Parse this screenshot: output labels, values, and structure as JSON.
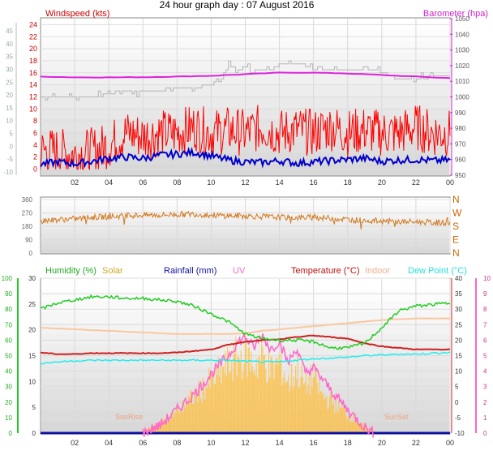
{
  "title": "24 hour graph day : 07 August 2016",
  "x_tick_labels": [
    "02",
    "04",
    "06",
    "08",
    "10",
    "12",
    "14",
    "16",
    "18",
    "20",
    "22",
    "00"
  ],
  "wind_panel": {
    "label_windspeed": "Windspeed (kts)",
    "label_barometer": "Barometer (hpa)",
    "far_left_ticks": [
      "45",
      "40",
      "35",
      "30",
      "25",
      "20",
      "15",
      "10",
      "5",
      "0",
      "-5",
      "-10"
    ],
    "windspeed_ticks": [
      "24",
      "22",
      "20",
      "18",
      "16",
      "14",
      "12",
      "10",
      "8",
      "6",
      "4",
      "2",
      "0"
    ],
    "barometer_ticks": [
      "1050",
      "1040",
      "1030",
      "1020",
      "1010",
      "1000",
      "990",
      "980",
      "970",
      "960",
      "950"
    ],
    "colors": {
      "windspeed": "#ff0000",
      "average": "#0000cc",
      "barometer": "#dd22dd",
      "grey_trace": "#b4b4b4"
    }
  },
  "direction_panel": {
    "degree_ticks": [
      "360",
      "270",
      "180",
      "90",
      "0"
    ],
    "compass_labels": [
      "N",
      "W",
      "S",
      "E",
      "N"
    ],
    "color": "#d2781e"
  },
  "climate_panel": {
    "legend": {
      "humidity": "Humidity (%)",
      "solar": "Solar",
      "rainfall": "Rainfall (mm)",
      "uv": "UV",
      "temperature": "Temperature (°C)",
      "indoor": "Indoor",
      "dewpoint": "Dew Point (°C)"
    },
    "humidity_ticks": [
      "100",
      "90",
      "80",
      "70",
      "60",
      "50",
      "40",
      "30",
      "20",
      "10",
      "0"
    ],
    "rain_ticks": [
      "30",
      "25",
      "20",
      "15",
      "10",
      "5",
      "0"
    ],
    "temp_ticks": [
      "40",
      "35",
      "30",
      "25",
      "20",
      "15",
      "10",
      "5",
      "0",
      "-5",
      "-10"
    ],
    "uv_ticks": [
      "10",
      "9",
      "8",
      "7",
      "6",
      "5",
      "4",
      "3",
      "2",
      "1",
      "0"
    ],
    "sunrise_label": "SunRise",
    "sunset_label": "SunSet",
    "colors": {
      "humidity": "#22cc22",
      "solar": "#ffc040",
      "rainfall": "#1010a0",
      "uv": "#ff66cc",
      "temperature": "#cc2222",
      "indoor": "#f8c8a0",
      "dewpoint": "#22eeee"
    }
  },
  "chart_data": [
    {
      "type": "line",
      "title": "24 hour graph day : 07 August 2016",
      "series": [
        {
          "name": "Windspeed (kts)",
          "axis": "windspeed",
          "x": [
            0,
            1,
            2,
            3,
            4,
            5,
            6,
            7,
            8,
            9,
            10,
            11,
            12,
            13,
            14,
            15,
            16,
            17,
            18,
            19,
            20,
            21,
            22,
            23,
            24
          ],
          "values": [
            3,
            3,
            2.5,
            3,
            4,
            6,
            5.5,
            6,
            6,
            7,
            6,
            6.5,
            6,
            7,
            6,
            6.5,
            6,
            7,
            6,
            6.5,
            6,
            6,
            7,
            6,
            6
          ]
        },
        {
          "axis": "windspeed",
          "x": [
            0,
            1,
            2,
            3,
            4,
            5,
            6,
            7,
            8,
            9,
            10,
            11,
            12,
            13,
            14,
            15,
            16,
            17,
            18,
            19,
            20,
            21,
            22,
            23,
            24
          ],
          "values": [
            0.8,
            1.2,
            0.9,
            1.3,
            1.8,
            2,
            1.8,
            2.3,
            2.5,
            2.8,
            2.2,
            1.5,
            1.2,
            1.1,
            1.4,
            1,
            1.2,
            1.4,
            1.6,
            1.8,
            1.3,
            1.5,
            1.6,
            1.4,
            1.5
          ]
        },
        {
          "name": "Barometer (hpa)",
          "axis": "barometer",
          "x": [
            0,
            2,
            4,
            6,
            8,
            10,
            12,
            14,
            16,
            18,
            20,
            22,
            24
          ],
          "values": [
            1013,
            1012.5,
            1012.5,
            1012.6,
            1013,
            1013.5,
            1014.5,
            1015.5,
            1015.5,
            1015,
            1014,
            1013,
            1012
          ]
        },
        {
          "axis": "windspeed",
          "x": [
            0,
            1,
            3,
            5,
            7,
            9,
            10.5,
            11,
            11.5,
            12,
            13,
            14,
            15,
            16,
            17,
            18,
            19,
            20,
            21,
            22,
            23,
            24
          ],
          "values": [
            12.2,
            12,
            12,
            12.8,
            13.2,
            13.5,
            14.5,
            17.5,
            16.5,
            17,
            16.5,
            17.5,
            17.5,
            17,
            16.5,
            16.5,
            16.8,
            16,
            15,
            15,
            15.5,
            15.5
          ]
        }
      ],
      "ylim_windspeed": [
        -1,
        25
      ],
      "ylim_barometer": [
        950,
        1050
      ]
    },
    {
      "type": "scatter",
      "series": [
        {
          "x": [
            0,
            1,
            2,
            3,
            4,
            5,
            6,
            7,
            8,
            9,
            10,
            11,
            12,
            13,
            14,
            15,
            16,
            17,
            18,
            19,
            20,
            21,
            22,
            23,
            24
          ],
          "values": [
            215,
            225,
            230,
            240,
            245,
            250,
            255,
            255,
            260,
            262,
            255,
            250,
            250,
            245,
            240,
            238,
            240,
            235,
            225,
            220,
            215,
            210,
            210,
            205,
            205
          ]
        }
      ],
      "ylim": [
        0,
        360
      ]
    },
    {
      "type": "line",
      "series": [
        {
          "name": "Humidity (%)",
          "axis": "humidity",
          "x": [
            0,
            1,
            2,
            3,
            4,
            5,
            6,
            7,
            8,
            9,
            10,
            11,
            12,
            13,
            14,
            15,
            16,
            17,
            18,
            19,
            20,
            21,
            22,
            23,
            24
          ],
          "values": [
            80,
            84,
            86,
            88,
            88,
            87,
            87,
            86,
            85,
            82,
            77,
            72,
            64,
            61,
            60,
            60,
            59,
            55,
            55,
            58,
            68,
            79,
            82,
            83,
            84
          ]
        },
        {
          "name": "Temperature (°C)",
          "axis": "temp",
          "x": [
            0,
            1,
            2,
            3,
            4,
            5,
            6,
            7,
            8,
            9,
            10,
            11,
            12,
            13,
            14,
            15,
            16,
            17,
            18,
            19,
            20,
            21,
            22,
            23,
            24
          ],
          "values": [
            16,
            15.5,
            15.5,
            15.8,
            15.8,
            15.8,
            15.8,
            15.8,
            16,
            16.5,
            17,
            18.5,
            19.5,
            20,
            20.2,
            21,
            21.5,
            21,
            20.5,
            19,
            18,
            17.5,
            17,
            17,
            17
          ]
        },
        {
          "name": "Dew Point (°C)",
          "axis": "temp",
          "x": [
            0,
            1,
            2,
            3,
            4,
            5,
            6,
            7,
            8,
            9,
            10,
            11,
            12,
            13,
            14,
            15,
            16,
            17,
            18,
            19,
            20,
            21,
            22,
            23,
            24
          ],
          "values": [
            12.5,
            13,
            13.3,
            13.5,
            13.5,
            13.5,
            13.5,
            13.5,
            13.5,
            13.5,
            13.5,
            13.5,
            13.2,
            13,
            13,
            13.5,
            14,
            14.2,
            14.5,
            15,
            15.2,
            15.5,
            15.5,
            15.8,
            16
          ]
        },
        {
          "name": "Indoor",
          "axis": "temp",
          "x": [
            0,
            2,
            4,
            6,
            8,
            10,
            11,
            12,
            13,
            14,
            16,
            18,
            20,
            22,
            24
          ],
          "values": [
            24,
            23.5,
            23,
            22.5,
            22,
            22,
            22,
            22.2,
            23,
            23.5,
            24.5,
            25.5,
            26.5,
            27,
            27
          ]
        },
        {
          "name": "Solar",
          "axis": "uv",
          "x": [
            5.5,
            6,
            7,
            8,
            9,
            10,
            11,
            11.5,
            12,
            12.5,
            13,
            13.5,
            14,
            14.5,
            15,
            15.5,
            16,
            16.5,
            17,
            18,
            19,
            19.5,
            20
          ],
          "values": [
            0,
            0.2,
            0.8,
            1.8,
            3,
            4.2,
            5.5,
            6,
            6.3,
            5.5,
            6.2,
            5,
            5.8,
            4,
            5.2,
            3.8,
            4.5,
            3,
            2.6,
            1.5,
            0.5,
            0.2,
            0
          ]
        },
        {
          "name": "UV",
          "axis": "uv",
          "x": [
            6,
            7,
            8,
            9,
            10,
            11,
            11.5,
            12,
            12.5,
            13,
            13.5,
            14,
            14.5,
            15,
            15.5,
            16,
            17,
            18,
            19,
            19.5
          ],
          "values": [
            0,
            0.5,
            1.5,
            2.5,
            3.8,
            5,
            5.8,
            6.2,
            5.5,
            6.3,
            5.4,
            6,
            4.5,
            5.5,
            3.9,
            4.2,
            2.8,
            1.5,
            0.4,
            0
          ]
        },
        {
          "name": "Rainfall (mm)",
          "axis": "rain",
          "x": [
            0,
            24
          ],
          "values": [
            0,
            0
          ]
        }
      ],
      "ylim_humidity": [
        0,
        100
      ],
      "ylim_rain": [
        0,
        30
      ],
      "ylim_temp": [
        -10,
        40
      ],
      "ylim_uv": [
        0,
        10
      ]
    }
  ]
}
